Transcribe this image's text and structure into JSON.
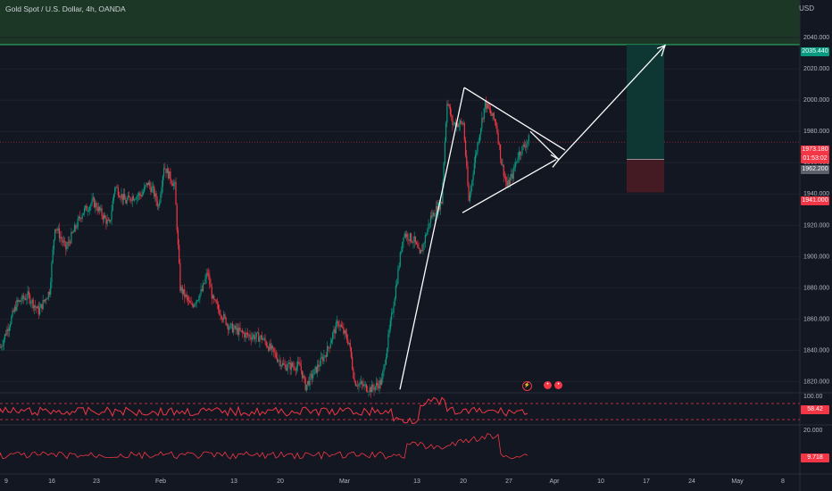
{
  "header": {
    "title": "Gold Spot / U.S. Dollar, 4h, OANDA",
    "currency": "USD"
  },
  "colors": {
    "bg": "#131722",
    "up": "#089981",
    "down": "#f23645",
    "white": "#ffffff",
    "zone": "#1e3d27"
  },
  "price_tags": {
    "tp": "2035.440",
    "last": "1973.180",
    "countdown": "01:53:02",
    "entry": "1962.200",
    "sl": "1941.000",
    "rsi": "58.42",
    "osc": "9.718"
  },
  "x_labels": [
    "9",
    "16",
    "23",
    "Feb",
    "13",
    "20",
    "Mar",
    "13",
    "20",
    "27",
    "Apr",
    "10",
    "17",
    "24",
    "May",
    "8"
  ],
  "chart_data": {
    "type": "candlestick",
    "title": "Gold Spot / U.S. Dollar, 4h, OANDA",
    "y_axis_ticks": [
      "2040.000",
      "2020.000",
      "2000.000",
      "1980.000",
      "1960.000",
      "1940.000",
      "1920.000",
      "1900.000",
      "1880.000",
      "1860.000",
      "1840.000",
      "1820.000"
    ],
    "ylim": [
      1814,
      2064
    ],
    "close_path": [
      [
        0,
        1842
      ],
      [
        3,
        1870
      ],
      [
        5,
        1875
      ],
      [
        7,
        1865
      ],
      [
        9,
        1878
      ],
      [
        10,
        1920
      ],
      [
        12,
        1905
      ],
      [
        15,
        1928
      ],
      [
        17,
        1935
      ],
      [
        20,
        1920
      ],
      [
        21,
        1945
      ],
      [
        23,
        1935
      ],
      [
        24,
        1938
      ],
      [
        26,
        1940
      ],
      [
        27,
        1947
      ],
      [
        28,
        1942
      ],
      [
        29,
        1932
      ],
      [
        30,
        1958
      ],
      [
        32,
        1945
      ],
      [
        33,
        1880
      ],
      [
        35,
        1868
      ],
      [
        37,
        1878
      ],
      [
        38,
        1890
      ],
      [
        39,
        1872
      ],
      [
        42,
        1855
      ],
      [
        45,
        1850
      ],
      [
        48,
        1848
      ],
      [
        52,
        1830
      ],
      [
        55,
        1830
      ],
      [
        56,
        1817
      ],
      [
        58,
        1828
      ],
      [
        60,
        1840
      ],
      [
        61,
        1850
      ],
      [
        62,
        1858
      ],
      [
        64,
        1845
      ],
      [
        65,
        1820
      ],
      [
        68,
        1815
      ],
      [
        70,
        1820
      ],
      [
        72,
        1866
      ],
      [
        74,
        1915
      ],
      [
        76,
        1910
      ],
      [
        77,
        1900
      ],
      [
        79,
        1925
      ],
      [
        81,
        1935
      ],
      [
        82,
        2000
      ],
      [
        83,
        1985
      ],
      [
        85,
        1985
      ],
      [
        86,
        1935
      ],
      [
        87,
        1960
      ],
      [
        88,
        1980
      ],
      [
        89,
        1998
      ],
      [
        91,
        1985
      ],
      [
        92,
        1960
      ],
      [
        93,
        1945
      ],
      [
        94,
        1952
      ],
      [
        95,
        1965
      ],
      [
        96,
        1970
      ],
      [
        97,
        1975
      ]
    ],
    "rsi": {
      "last": 58.42,
      "upper_label": "100.00",
      "lower_label": "20.000"
    },
    "oscillator": {
      "last": 9.718
    },
    "long_position": {
      "entry": 1962.2,
      "target": 2035.44,
      "stop": 1941.0
    },
    "patterns": [
      "triangle",
      "forecast-arrow"
    ]
  }
}
